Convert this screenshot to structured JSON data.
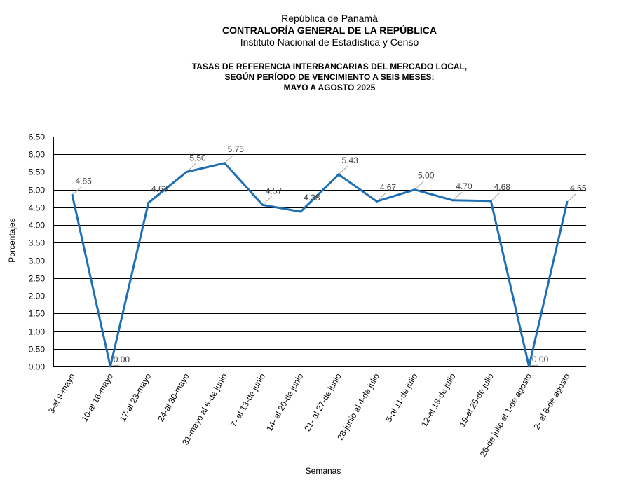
{
  "header": {
    "line1": "República de Panamá",
    "line2": "CONTRALORÍA GENERAL DE LA REPÚBLICA",
    "line3": "Instituto Nacional de Estadística y Censo"
  },
  "title": {
    "line1": "TASAS DE REFERENCIA INTERBANCARIAS DEL MERCADO LOCAL,",
    "line2": "SEGÚN PERÍODO DE VENCIMIENTO A SEIS MESES:",
    "line3": "MAYO A AGOSTO 2025"
  },
  "chart_data": {
    "type": "line",
    "categories": [
      "3-al 9-mayo",
      "10-al 16-mayo",
      "17-al 23-mayo",
      "24-al 30-mayo",
      "31-mayo al 6-de junio",
      "7- al 13-de junio",
      "14- al 20-de junio",
      "21- al 27-de junio",
      "28-junio al 4-de julio",
      "5-al 11-de julio",
      "12-al 18-de julio",
      "19-al 25-de julio",
      "26-de julio al 1-de agosto",
      "2- al 8-de agosto"
    ],
    "values": [
      4.85,
      0.0,
      4.63,
      5.5,
      5.75,
      4.57,
      4.38,
      5.43,
      4.67,
      5.0,
      4.7,
      4.68,
      0.0,
      4.65
    ],
    "value_labels": [
      "4.85",
      "0.00",
      "4.63",
      "5.50",
      "5.75",
      "4.57",
      "4.38",
      "5.43",
      "4.67",
      "5.00",
      "4.70",
      "4.68",
      "0.00",
      "4.65"
    ],
    "ylabel": "Porcentajes",
    "xlabel": "Semanas",
    "ylim": [
      0,
      6.5
    ],
    "yticks": [
      "0.00",
      "0.50",
      "1.00",
      "1.50",
      "2.00",
      "2.50",
      "3.00",
      "3.50",
      "4.00",
      "4.50",
      "5.00",
      "5.50",
      "6.00",
      "6.50"
    ],
    "grid": true,
    "legend": "none",
    "line_color": "#1f6fb4",
    "grid_color": "#000000",
    "leader_color": "#a6a6a6",
    "label_color": "#404040"
  }
}
